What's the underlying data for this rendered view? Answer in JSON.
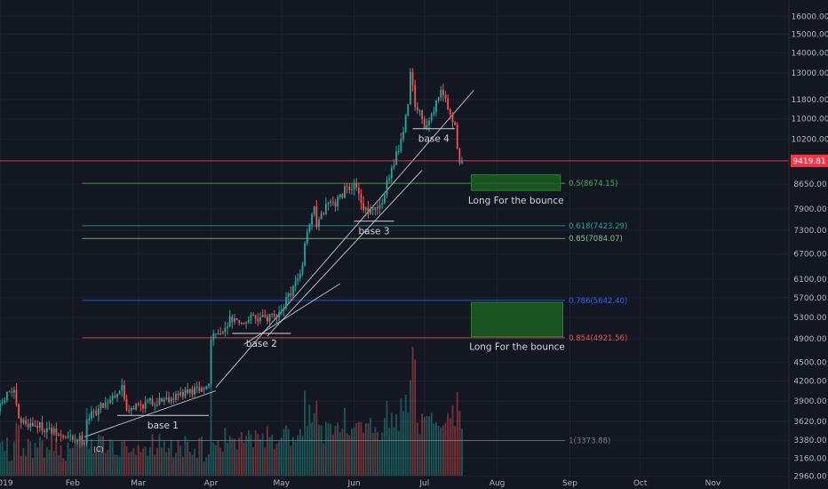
{
  "colors": {
    "background": "#131722",
    "up": "#26a69a",
    "down": "#ef5350",
    "grid": "#1e222d",
    "axis_text": "#b2b5be",
    "current_price": "#f23645",
    "zone": "#1b5e20"
  },
  "chart_data": {
    "type": "candlestick",
    "title": "",
    "y_scale": "log",
    "ylim": [
      2880,
      17000
    ],
    "y_ticks": [
      2960,
      3160,
      3380,
      3620,
      3900,
      4200,
      4500,
      4900,
      5300,
      5700,
      6100,
      6700,
      7300,
      7900,
      8650,
      9419.81,
      10200,
      11000,
      11800,
      13000,
      14000,
      15000,
      16000
    ],
    "y_tick_labels": [
      "2960.00",
      "3160.00",
      "3380.00",
      "3620.00",
      "3900.00",
      "4200.00",
      "4500.00",
      "4900.00",
      "5300.00",
      "5700.00",
      "6100.00",
      "6700.00",
      "7300.00",
      "7900.00",
      "8650.00",
      "",
      "10200.00",
      "11000.00",
      "11800.00",
      "13000.00",
      "14000.00",
      "15000.00",
      "16000.00"
    ],
    "x_start": "2019-01-01",
    "x_end": "2019-11-30",
    "x_labels": [
      {
        "date": "2019-01-01",
        "label": "019"
      },
      {
        "date": "2019-02-01",
        "label": "Feb"
      },
      {
        "date": "2019-03-01",
        "label": "Mar"
      },
      {
        "date": "2019-04-01",
        "label": "Apr"
      },
      {
        "date": "2019-05-01",
        "label": "May"
      },
      {
        "date": "2019-06-01",
        "label": "Jun"
      },
      {
        "date": "2019-07-01",
        "label": "Jul"
      },
      {
        "date": "2019-08-01",
        "label": "Aug"
      },
      {
        "date": "2019-09-01",
        "label": "Sep"
      },
      {
        "date": "2019-10-01",
        "label": "Oct"
      },
      {
        "date": "2019-11-01",
        "label": "Nov"
      }
    ],
    "last_date": "2019-07-17",
    "current_price": {
      "value": 9419.81,
      "label": "9419.81"
    },
    "price_path": [
      [
        "2019-01-01",
        3750
      ],
      [
        "2019-01-06",
        4050
      ],
      [
        "2019-01-08",
        4000
      ],
      [
        "2019-01-10",
        3620
      ],
      [
        "2019-01-20",
        3550
      ],
      [
        "2019-01-28",
        3420
      ],
      [
        "2019-02-07",
        3380
      ],
      [
        "2019-02-08",
        3650
      ],
      [
        "2019-02-23",
        4100
      ],
      [
        "2019-02-25",
        3800
      ],
      [
        "2019-03-15",
        3950
      ],
      [
        "2019-03-31",
        4100
      ],
      [
        "2019-04-01",
        4150
      ],
      [
        "2019-04-02",
        4900
      ],
      [
        "2019-04-10",
        5250
      ],
      [
        "2019-04-25",
        5300
      ],
      [
        "2019-05-01",
        5400
      ],
      [
        "2019-05-10",
        6200
      ],
      [
        "2019-05-13",
        7200
      ],
      [
        "2019-05-16",
        7900
      ],
      [
        "2019-05-17",
        7400
      ],
      [
        "2019-05-21",
        8000
      ],
      [
        "2019-05-25",
        8000
      ],
      [
        "2019-05-30",
        8600
      ],
      [
        "2019-06-03",
        8500
      ],
      [
        "2019-06-06",
        7800
      ],
      [
        "2019-06-12",
        7900
      ],
      [
        "2019-06-14",
        8200
      ],
      [
        "2019-06-18",
        9100
      ],
      [
        "2019-06-22",
        10200
      ],
      [
        "2019-06-25",
        11500
      ],
      [
        "2019-06-26",
        13000
      ],
      [
        "2019-06-28",
        11500
      ],
      [
        "2019-06-30",
        11200
      ],
      [
        "2019-07-02",
        10500
      ],
      [
        "2019-07-05",
        11000
      ],
      [
        "2019-07-09",
        12300
      ],
      [
        "2019-07-12",
        11400
      ],
      [
        "2019-07-15",
        10600
      ],
      [
        "2019-07-17",
        9419.81
      ]
    ],
    "events": [
      {
        "date": "2019-04-01",
        "volume": 0.72
      },
      {
        "date": "2019-05-13",
        "volume": 0.55
      },
      {
        "date": "2019-06-26",
        "volume": 1.0
      },
      {
        "date": "2019-06-27",
        "volume": 0.9
      },
      {
        "date": "2019-07-15",
        "volume": 0.65
      }
    ],
    "fib_levels": [
      {
        "ratio": "0.5",
        "price": 8674.15,
        "label": "0.5(8674.15)",
        "color": "#4caf50"
      },
      {
        "ratio": "0.618",
        "price": 7423.29,
        "label": "0.618(7423.29)",
        "color": "#26a69a"
      },
      {
        "ratio": "0.65",
        "price": 7084.07,
        "label": "0.65(7084.07)",
        "color": "#81c784"
      },
      {
        "ratio": "0.786",
        "price": 5642.4,
        "label": "0.786(5642.40)",
        "color": "#2962ff"
      },
      {
        "ratio": "0.854",
        "price": 4921.56,
        "label": "0.854(4921.56)",
        "color": "#ef5350"
      },
      {
        "ratio": "1",
        "price": 3373.88,
        "label": "1(3373.88)",
        "color": "#787b86"
      }
    ],
    "zones": [
      {
        "from": "2019-07-21",
        "to": "2019-08-28",
        "top": 8950,
        "bottom": 8450,
        "label": "Long For the bounce"
      },
      {
        "from": "2019-07-21",
        "to": "2019-08-29",
        "top": 5600,
        "bottom": 4940,
        "label": "Long For the bounce"
      }
    ],
    "bases": [
      {
        "label": "base 1",
        "from": "2019-02-20",
        "to": "2019-03-31",
        "price": 3700
      },
      {
        "label": "base 2",
        "from": "2019-04-10",
        "to": "2019-05-05",
        "price": 5000
      },
      {
        "label": "base 3",
        "from": "2019-06-01",
        "to": "2019-06-18",
        "price": 7550
      },
      {
        "label": "base 4",
        "from": "2019-06-26",
        "to": "2019-07-14",
        "price": 10600
      }
    ],
    "trendlines": [
      {
        "from": [
          "2019-02-06",
          3420
        ],
        "to": [
          "2019-04-03",
          4050
        ]
      },
      {
        "from": [
          "2019-04-03",
          4100
        ],
        "to": [
          "2019-07-22",
          12200
        ]
      },
      {
        "from": [
          "2019-04-25",
          4950
        ],
        "to": [
          "2019-06-30",
          9100
        ]
      },
      {
        "from": [
          "2019-04-15",
          4800
        ],
        "to": [
          "2019-05-26",
          6000
        ]
      }
    ],
    "marker": {
      "date": "2019-02-12",
      "price": 3240,
      "label": "(C)"
    }
  }
}
